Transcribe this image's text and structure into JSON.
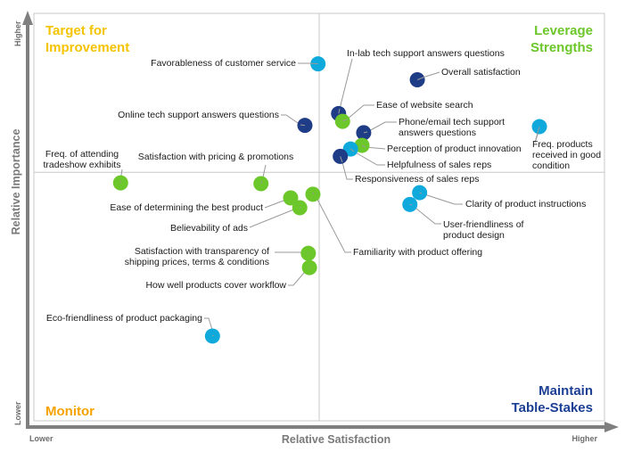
{
  "chart_data": {
    "type": "scatter",
    "title": "",
    "xlabel": "Relative Satisfaction",
    "ylabel": "Relative Importance",
    "x_axis_ends": {
      "low": "Lower",
      "high": "Higher"
    },
    "y_axis_ends": {
      "low": "Lower",
      "high": "Higher"
    },
    "xlim": [
      0,
      1
    ],
    "ylim": [
      0,
      1
    ],
    "quadrant_split": {
      "x": 0.5,
      "y": 0.61
    },
    "grid": false,
    "quadrants": [
      {
        "id": "top-left",
        "title_lines": [
          "Target for",
          "Improvement"
        ],
        "color": "#f5c300",
        "position": "top-left"
      },
      {
        "id": "top-right",
        "title_lines": [
          "Leverage",
          "Strengths"
        ],
        "color": "#6cc72a",
        "position": "top-right"
      },
      {
        "id": "bottom-left",
        "title_lines": [
          "Monitor"
        ],
        "color": "#f5a300",
        "position": "bottom-left"
      },
      {
        "id": "bottom-right",
        "title_lines": [
          "Maintain",
          "Table-Stakes"
        ],
        "color": "#1c3f94",
        "position": "bottom-right"
      }
    ],
    "series_colors": {
      "navy": "#1f3c87",
      "cyan": "#10a9dc",
      "green": "#6cc72a"
    },
    "points": [
      {
        "label_lines": [
          "Favorableness of customer service"
        ],
        "x": 0.498,
        "y": 0.876,
        "color": "cyan"
      },
      {
        "label_lines": [
          "In-lab tech support answers questions"
        ],
        "x": 0.534,
        "y": 0.754,
        "color": "navy"
      },
      {
        "label_lines": [
          "Overall satisfaction"
        ],
        "x": 0.672,
        "y": 0.837,
        "color": "navy"
      },
      {
        "label_lines": [
          "Ease of website search"
        ],
        "x": 0.541,
        "y": 0.735,
        "color": "green"
      },
      {
        "label_lines": [
          "Online tech support answers questions"
        ],
        "x": 0.475,
        "y": 0.725,
        "color": "navy"
      },
      {
        "label_lines": [
          "Phone/email tech support",
          "answers questions"
        ],
        "x": 0.578,
        "y": 0.707,
        "color": "navy"
      },
      {
        "label_lines": [
          "Perception of product innovation"
        ],
        "x": 0.575,
        "y": 0.676,
        "color": "green"
      },
      {
        "label_lines": [
          "Helpfulness of sales reps"
        ],
        "x": 0.555,
        "y": 0.667,
        "color": "cyan"
      },
      {
        "label_lines": [
          "Responsiveness of sales reps"
        ],
        "x": 0.537,
        "y": 0.649,
        "color": "navy"
      },
      {
        "label_lines": [
          "Freq. products",
          "received in good",
          "condition"
        ],
        "x": 0.886,
        "y": 0.722,
        "color": "cyan"
      },
      {
        "label_lines": [
          "Freq. of attending",
          "tradeshow exhibits"
        ],
        "x": 0.152,
        "y": 0.584,
        "color": "green"
      },
      {
        "label_lines": [
          "Satisfaction with pricing & promotions"
        ],
        "x": 0.398,
        "y": 0.582,
        "color": "green"
      },
      {
        "label_lines": [
          "Clarity of product instructions"
        ],
        "x": 0.676,
        "y": 0.56,
        "color": "cyan"
      },
      {
        "label_lines": [
          "User-friendliness of",
          "product design"
        ],
        "x": 0.659,
        "y": 0.531,
        "color": "cyan"
      },
      {
        "label_lines": [
          "Ease of determining the best product"
        ],
        "x": 0.45,
        "y": 0.547,
        "color": "green"
      },
      {
        "label_lines": [
          "Familiarity with product offering"
        ],
        "x": 0.489,
        "y": 0.556,
        "color": "green"
      },
      {
        "label_lines": [
          "Believability of ads"
        ],
        "x": 0.466,
        "y": 0.523,
        "color": "green"
      },
      {
        "label_lines": [
          "Satisfaction with transparency of",
          "shipping prices, terms & conditions"
        ],
        "x": 0.481,
        "y": 0.411,
        "color": "green"
      },
      {
        "label_lines": [
          "How well products cover workflow"
        ],
        "x": 0.483,
        "y": 0.376,
        "color": "green"
      },
      {
        "label_lines": [
          "Eco-friendliness of product packaging"
        ],
        "x": 0.313,
        "y": 0.208,
        "color": "cyan"
      }
    ]
  }
}
